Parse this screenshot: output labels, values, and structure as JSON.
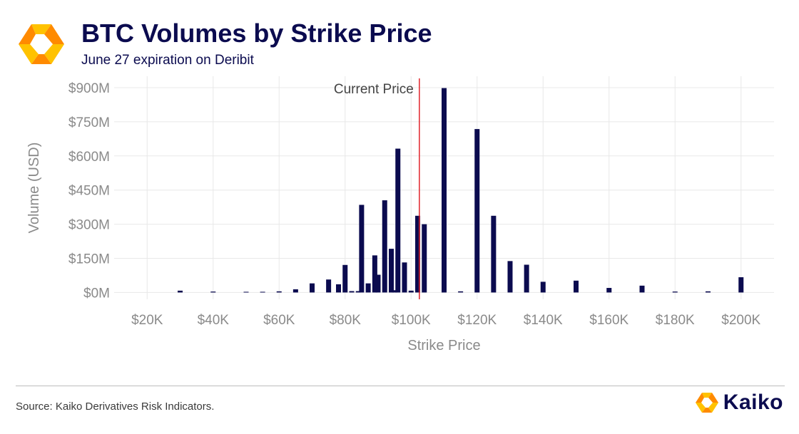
{
  "header": {
    "title": "BTC Volumes by Strike Price",
    "subtitle": "June 27 expiration on Deribit"
  },
  "footer": {
    "source": "Source: Kaiko Derivatives Risk Indicators.",
    "brand": "Kaiko"
  },
  "colors": {
    "bar": "#0b0b4f",
    "current_price_line": "#e0252b",
    "logo_orange": "#ff8a00",
    "logo_yellow": "#ffc200",
    "grid": "#e8e8e8"
  },
  "chart_data": {
    "type": "bar",
    "xlabel": "Strike Price",
    "ylabel": "Volume (USD)",
    "xlim": [
      10000,
      210000
    ],
    "ylim": [
      -30000000,
      950000000
    ],
    "x_ticks": [
      20000,
      40000,
      60000,
      80000,
      100000,
      120000,
      140000,
      160000,
      180000,
      200000
    ],
    "x_tick_labels": [
      "$20K",
      "$40K",
      "$60K",
      "$80K",
      "$100K",
      "$120K",
      "$140K",
      "$160K",
      "$180K",
      "$200K"
    ],
    "y_ticks": [
      0,
      150000000,
      300000000,
      450000000,
      600000000,
      750000000,
      900000000
    ],
    "y_tick_labels": [
      "$0M",
      "$150M",
      "$300M",
      "$450M",
      "$600M",
      "$750M",
      "$900M"
    ],
    "grid": true,
    "current_price": {
      "label": "Current Price",
      "x": 102500
    },
    "x": [
      30000,
      40000,
      50000,
      55000,
      60000,
      65000,
      70000,
      75000,
      78000,
      80000,
      82000,
      84000,
      85000,
      87000,
      89000,
      90000,
      92000,
      94000,
      95000,
      96000,
      98000,
      100000,
      102000,
      104000,
      110000,
      115000,
      120000,
      125000,
      130000,
      135000,
      140000,
      150000,
      160000,
      170000,
      180000,
      190000,
      200000
    ],
    "values": [
      8000000,
      4000000,
      3000000,
      3000000,
      5000000,
      14000000,
      40000000,
      57000000,
      36000000,
      121000000,
      6000000,
      6000000,
      385000000,
      40000000,
      163000000,
      78000000,
      405000000,
      192000000,
      10000000,
      632000000,
      132000000,
      8000000,
      337000000,
      300000000,
      898000000,
      5000000,
      718000000,
      337000000,
      138000000,
      122000000,
      47000000,
      52000000,
      20000000,
      30000000,
      4000000,
      5000000,
      67000000
    ]
  }
}
